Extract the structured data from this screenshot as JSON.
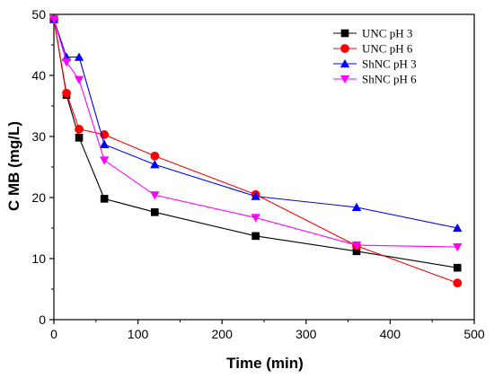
{
  "chart_data": {
    "type": "line",
    "title": "",
    "xlabel": "Time (min)",
    "ylabel": "C MB (mg/L)",
    "xlim": [
      0,
      500
    ],
    "ylim": [
      0,
      50
    ],
    "xticks": [
      0,
      100,
      200,
      300,
      400,
      500
    ],
    "yticks": [
      0,
      10,
      20,
      30,
      40,
      50
    ],
    "grid": false,
    "legend": "top-right",
    "x": [
      0,
      15,
      30,
      60,
      120,
      240,
      360,
      480
    ],
    "series": [
      {
        "name": "UNC  pH 3",
        "color": "#000000",
        "marker": "square",
        "values": [
          49.2,
          36.8,
          29.8,
          19.8,
          17.6,
          13.7,
          11.2,
          8.5
        ]
      },
      {
        "name": "UNC   pH 6",
        "color": "#ff0000",
        "marker": "circle",
        "values": [
          49.2,
          37.1,
          31.2,
          30.3,
          26.8,
          20.5,
          12.1,
          6.0
        ]
      },
      {
        "name": "ShNC  pH 3",
        "color": "#0000ff",
        "marker": "triangle-up",
        "values": [
          49.2,
          43.0,
          43.0,
          28.7,
          25.4,
          20.2,
          18.4,
          15.0
        ]
      },
      {
        "name": "ShNC pH 6",
        "color": "#ff00ff",
        "marker": "triangle-down",
        "values": [
          49.2,
          42.2,
          39.3,
          26.1,
          20.4,
          16.7,
          12.2,
          11.9
        ]
      }
    ]
  }
}
